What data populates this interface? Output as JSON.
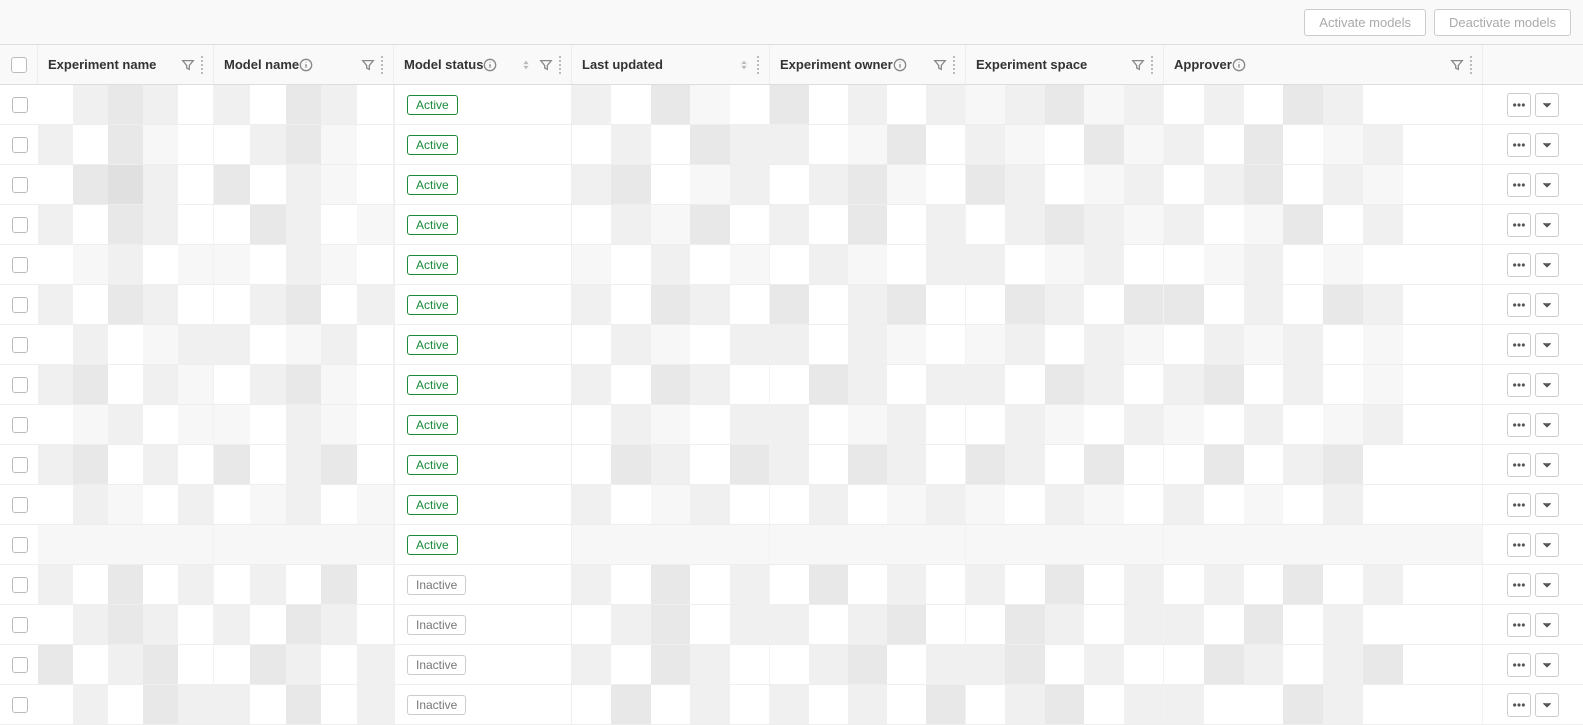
{
  "toolbar": {
    "activate_label": "Activate models",
    "deactivate_label": "Deactivate models"
  },
  "columns": {
    "experiment_name": {
      "label": "Experiment name",
      "has_info": false,
      "has_sort": false,
      "has_filter": true
    },
    "model_name": {
      "label": "Model name",
      "has_info": true,
      "has_sort": false,
      "has_filter": true
    },
    "model_status": {
      "label": "Model status",
      "has_info": true,
      "has_sort": true,
      "has_filter": true
    },
    "last_updated": {
      "label": "Last updated",
      "has_info": false,
      "has_sort": true,
      "has_filter": false
    },
    "experiment_owner": {
      "label": "Experiment owner",
      "has_info": true,
      "has_sort": false,
      "has_filter": true
    },
    "experiment_space": {
      "label": "Experiment space",
      "has_info": false,
      "has_sort": false,
      "has_filter": true
    },
    "approver": {
      "label": "Approver",
      "has_info": true,
      "has_sort": false,
      "has_filter": true
    }
  },
  "status_labels": {
    "active": "Active",
    "inactive": "Inactive"
  },
  "status_colors": {
    "active": "#1a8a3a",
    "inactive": "#777777",
    "border_inactive": "#cccccc"
  },
  "redaction_shades": [
    "#ffffff",
    "#f7f7f7",
    "#f0f0f0",
    "#e8e8e8",
    "#e0e0e0",
    "#d8d8d8"
  ],
  "rows": [
    {
      "status": "active",
      "cells": {
        "exp": [
          0,
          2,
          3,
          2,
          0
        ],
        "model": [
          2,
          0,
          3,
          2,
          0
        ],
        "updated": [
          2,
          0,
          3,
          1,
          0
        ],
        "owner": [
          3,
          0,
          2,
          0,
          2
        ],
        "space": [
          1,
          2,
          3,
          1,
          2
        ],
        "approver": [
          0,
          2,
          0,
          3,
          2,
          0,
          0,
          0
        ]
      }
    },
    {
      "status": "active",
      "cells": {
        "exp": [
          2,
          0,
          3,
          1,
          0
        ],
        "model": [
          0,
          2,
          3,
          1,
          0
        ],
        "updated": [
          0,
          2,
          0,
          3,
          2
        ],
        "owner": [
          2,
          0,
          1,
          3,
          0
        ],
        "space": [
          2,
          1,
          0,
          3,
          1
        ],
        "approver": [
          2,
          0,
          3,
          0,
          1,
          2,
          0,
          0
        ]
      }
    },
    {
      "status": "active",
      "cells": {
        "exp": [
          0,
          3,
          4,
          2,
          0
        ],
        "model": [
          3,
          0,
          2,
          1,
          0
        ],
        "updated": [
          2,
          3,
          0,
          1,
          2
        ],
        "owner": [
          0,
          2,
          3,
          1,
          0
        ],
        "space": [
          3,
          2,
          0,
          1,
          2
        ],
        "approver": [
          0,
          2,
          3,
          0,
          2,
          1,
          0,
          0
        ]
      }
    },
    {
      "status": "active",
      "cells": {
        "exp": [
          2,
          0,
          3,
          2,
          0
        ],
        "model": [
          0,
          3,
          2,
          0,
          1
        ],
        "updated": [
          0,
          2,
          1,
          3,
          0
        ],
        "owner": [
          2,
          0,
          3,
          0,
          2
        ],
        "space": [
          0,
          2,
          3,
          2,
          1
        ],
        "approver": [
          2,
          0,
          1,
          3,
          0,
          2,
          0,
          0
        ]
      }
    },
    {
      "status": "active",
      "cells": {
        "exp": [
          0,
          1,
          2,
          0,
          1
        ],
        "model": [
          1,
          0,
          2,
          1,
          0
        ],
        "updated": [
          1,
          0,
          2,
          0,
          1
        ],
        "owner": [
          0,
          2,
          1,
          0,
          2
        ],
        "space": [
          2,
          0,
          1,
          2,
          0
        ],
        "approver": [
          0,
          1,
          2,
          0,
          1,
          0,
          0,
          0
        ]
      }
    },
    {
      "status": "active",
      "cells": {
        "exp": [
          2,
          0,
          3,
          2,
          0
        ],
        "model": [
          0,
          2,
          3,
          0,
          2
        ],
        "updated": [
          2,
          0,
          3,
          2,
          0
        ],
        "owner": [
          3,
          0,
          2,
          3,
          0
        ],
        "space": [
          0,
          3,
          2,
          0,
          3
        ],
        "approver": [
          3,
          0,
          2,
          0,
          3,
          2,
          0,
          0
        ]
      }
    },
    {
      "status": "active",
      "cells": {
        "exp": [
          0,
          2,
          0,
          1,
          2
        ],
        "model": [
          2,
          0,
          1,
          2,
          0
        ],
        "updated": [
          0,
          2,
          1,
          0,
          2
        ],
        "owner": [
          2,
          0,
          2,
          1,
          0
        ],
        "space": [
          1,
          2,
          0,
          2,
          1
        ],
        "approver": [
          0,
          2,
          1,
          2,
          0,
          1,
          0,
          0
        ]
      }
    },
    {
      "status": "active",
      "cells": {
        "exp": [
          2,
          3,
          0,
          2,
          1
        ],
        "model": [
          0,
          2,
          3,
          1,
          0
        ],
        "updated": [
          2,
          0,
          3,
          2,
          0
        ],
        "owner": [
          0,
          3,
          2,
          0,
          2
        ],
        "space": [
          2,
          0,
          3,
          2,
          0
        ],
        "approver": [
          2,
          3,
          0,
          2,
          0,
          1,
          0,
          0
        ]
      }
    },
    {
      "status": "active",
      "cells": {
        "exp": [
          0,
          1,
          2,
          0,
          1
        ],
        "model": [
          1,
          0,
          2,
          1,
          0
        ],
        "updated": [
          0,
          2,
          1,
          0,
          2
        ],
        "owner": [
          2,
          0,
          1,
          2,
          0
        ],
        "space": [
          0,
          2,
          1,
          0,
          2
        ],
        "approver": [
          1,
          0,
          2,
          0,
          1,
          2,
          0,
          0
        ]
      }
    },
    {
      "status": "active",
      "cells": {
        "exp": [
          2,
          3,
          0,
          2,
          0
        ],
        "model": [
          3,
          0,
          2,
          3,
          0
        ],
        "updated": [
          0,
          3,
          2,
          0,
          3
        ],
        "owner": [
          2,
          0,
          3,
          2,
          0
        ],
        "space": [
          3,
          2,
          0,
          3,
          0
        ],
        "approver": [
          0,
          3,
          0,
          2,
          3,
          0,
          0,
          0
        ]
      }
    },
    {
      "status": "active",
      "cells": {
        "exp": [
          0,
          2,
          1,
          0,
          2
        ],
        "model": [
          0,
          1,
          2,
          0,
          1
        ],
        "updated": [
          2,
          0,
          1,
          2,
          0
        ],
        "owner": [
          0,
          2,
          0,
          1,
          2
        ],
        "space": [
          1,
          0,
          2,
          1,
          0
        ],
        "approver": [
          2,
          0,
          1,
          0,
          2,
          0,
          0,
          0
        ]
      }
    },
    {
      "status": "active",
      "cells": {
        "exp": [
          1,
          1,
          1,
          1,
          1
        ],
        "model": [
          1,
          1,
          1,
          1,
          1
        ],
        "updated": [
          1,
          1,
          1,
          1,
          1
        ],
        "owner": [
          1,
          1,
          1,
          1,
          1
        ],
        "space": [
          1,
          1,
          1,
          1,
          1
        ],
        "approver": [
          1,
          1,
          1,
          1,
          1,
          1,
          1,
          1
        ]
      }
    },
    {
      "status": "inactive",
      "cells": {
        "exp": [
          2,
          0,
          3,
          0,
          2
        ],
        "model": [
          0,
          2,
          0,
          3,
          0
        ],
        "updated": [
          2,
          0,
          3,
          0,
          2
        ],
        "owner": [
          0,
          3,
          0,
          2,
          0
        ],
        "space": [
          2,
          0,
          3,
          0,
          2
        ],
        "approver": [
          0,
          2,
          0,
          3,
          0,
          2,
          0,
          0
        ]
      }
    },
    {
      "status": "inactive",
      "cells": {
        "exp": [
          0,
          2,
          3,
          2,
          0
        ],
        "model": [
          2,
          0,
          3,
          2,
          0
        ],
        "updated": [
          0,
          2,
          3,
          0,
          2
        ],
        "owner": [
          2,
          0,
          2,
          3,
          0
        ],
        "space": [
          0,
          3,
          2,
          0,
          2
        ],
        "approver": [
          2,
          0,
          3,
          0,
          2,
          0,
          0,
          0
        ]
      }
    },
    {
      "status": "inactive",
      "cells": {
        "exp": [
          3,
          0,
          2,
          3,
          0
        ],
        "model": [
          0,
          3,
          2,
          0,
          2
        ],
        "updated": [
          2,
          0,
          3,
          2,
          0
        ],
        "owner": [
          0,
          2,
          3,
          0,
          2
        ],
        "space": [
          2,
          3,
          0,
          2,
          0
        ],
        "approver": [
          0,
          3,
          2,
          0,
          2,
          3,
          0,
          0
        ]
      }
    },
    {
      "status": "inactive",
      "cells": {
        "exp": [
          0,
          2,
          0,
          3,
          2
        ],
        "model": [
          2,
          0,
          3,
          0,
          2
        ],
        "updated": [
          0,
          3,
          0,
          2,
          0
        ],
        "owner": [
          2,
          0,
          2,
          0,
          3
        ],
        "space": [
          0,
          2,
          3,
          0,
          2
        ],
        "approver": [
          2,
          0,
          0,
          3,
          2,
          0,
          0,
          0
        ]
      }
    }
  ]
}
